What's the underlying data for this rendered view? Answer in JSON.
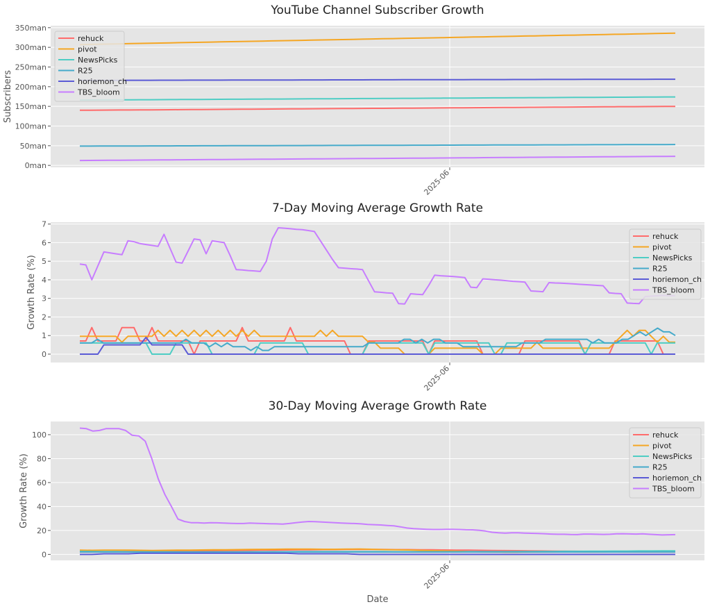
{
  "colors": {
    "rehuck": "#ff6b6b",
    "pivot": "#f5a623",
    "NewsPicks": "#4ecdc4",
    "R25": "#45aaca",
    "horiemon_ch": "#5b5bd6",
    "TBS_bloom": "#c77dff",
    "panel": "#e5e5e5",
    "grid": "#ffffff"
  },
  "chart_data": [
    {
      "type": "line",
      "title": "YouTube Channel Subscriber Growth",
      "xlabel": "",
      "ylabel": "Subscribers",
      "x_tick_labels": [
        "2025-06"
      ],
      "y_ticks": [
        0,
        50,
        100,
        150,
        200,
        250,
        300,
        350
      ],
      "y_tick_labels": [
        "0man",
        "50man",
        "100man",
        "150man",
        "200man",
        "250man",
        "300man",
        "350man"
      ],
      "ylim": [
        -5,
        355
      ],
      "grid": true,
      "legend": "upper left",
      "series": [
        {
          "name": "rehuck",
          "start": 140,
          "end": 150
        },
        {
          "name": "pivot",
          "start": 307,
          "end": 336
        },
        {
          "name": "NewsPicks",
          "start": 166,
          "end": 174
        },
        {
          "name": "R25",
          "start": 49,
          "end": 53
        },
        {
          "name": "horiemon_ch",
          "start": 216,
          "end": 219
        },
        {
          "name": "TBS_bloom",
          "start": 12.5,
          "end": 23
        }
      ]
    },
    {
      "type": "line",
      "title": "7-Day Moving Average Growth Rate",
      "xlabel": "",
      "ylabel": "Growth Rate (%)",
      "x_tick_labels": [
        "2025-06"
      ],
      "y_ticks": [
        0,
        1,
        2,
        3,
        4,
        5,
        6,
        7
      ],
      "ylim": [
        -0.45,
        7.1
      ],
      "grid": true,
      "legend": "upper right",
      "series": [
        {
          "name": "rehuck",
          "values": [
            0.71,
            0.71,
            1.43,
            0.71,
            0.71,
            0.71,
            0.71,
            1.43,
            1.43,
            1.43,
            0.71,
            0.71,
            1.43,
            0.71,
            0.71,
            0.71,
            0.71,
            0.71,
            0.71,
            0.0,
            0.71,
            0.71,
            0.71,
            0.71,
            0.71,
            0.71,
            0.71,
            1.43,
            0.71,
            0.71,
            0.71,
            0.71,
            0.71,
            0.71,
            0.71,
            1.43,
            0.71,
            0.71,
            0.71,
            0.71,
            0.71,
            0.71,
            0.71,
            0.71,
            0.71,
            0.0,
            0.0,
            0.0,
            0.71,
            0.71,
            0.71,
            0.71,
            0.71,
            0.71,
            0.71,
            0.71,
            0.71,
            0.71,
            0.0,
            0.71,
            0.71,
            0.71,
            0.71,
            0.71,
            0.71,
            0.71,
            0.71,
            0.0,
            0.0,
            0.0,
            0.0,
            0.0,
            0.0,
            0.0,
            0.71,
            0.71,
            0.71,
            0.71,
            0.71,
            0.71,
            0.71,
            0.71,
            0.71,
            0.71,
            0.0,
            0.0,
            0.0,
            0.0,
            0.0,
            0.71,
            0.71,
            0.71,
            0.71,
            0.71,
            0.71,
            0.71,
            0.71,
            0.0,
            0.0,
            0.0
          ]
        },
        {
          "name": "pivot",
          "values": [
            0.96,
            0.96,
            0.96,
            0.96,
            0.96,
            0.96,
            0.96,
            0.64,
            0.96,
            0.96,
            0.96,
            0.96,
            0.96,
            1.28,
            0.96,
            1.28,
            0.96,
            1.28,
            0.96,
            1.28,
            0.96,
            1.28,
            0.96,
            1.28,
            0.96,
            1.28,
            0.96,
            1.28,
            0.96,
            1.28,
            0.96,
            0.96,
            0.96,
            0.96,
            0.96,
            0.96,
            0.96,
            0.96,
            0.96,
            0.96,
            1.28,
            0.96,
            1.28,
            0.96,
            0.96,
            0.96,
            0.96,
            0.96,
            0.64,
            0.64,
            0.32,
            0.32,
            0.32,
            0.32,
            0.0,
            0.0,
            0.0,
            0.0,
            0.0,
            0.32,
            0.32,
            0.32,
            0.32,
            0.32,
            0.32,
            0.32,
            0.32,
            0.0,
            0.0,
            0.0,
            0.32,
            0.32,
            0.32,
            0.32,
            0.32,
            0.32,
            0.64,
            0.32,
            0.32,
            0.32,
            0.32,
            0.32,
            0.32,
            0.32,
            0.32,
            0.32,
            0.32,
            0.32,
            0.32,
            0.64,
            0.96,
            1.28,
            0.96,
            1.28,
            1.28,
            0.96,
            0.64,
            0.96,
            0.64,
            0.64
          ]
        },
        {
          "name": "NewsPicks",
          "values": [
            0.6,
            0.6,
            0.6,
            0.6,
            0.6,
            0.6,
            0.6,
            0.6,
            0.6,
            0.6,
            0.6,
            0.6,
            0.0,
            0.0,
            0.0,
            0.0,
            0.6,
            0.6,
            0.6,
            0.6,
            0.6,
            0.6,
            0.0,
            0.0,
            0.0,
            0.0,
            0.0,
            0.0,
            0.0,
            0.0,
            0.6,
            0.6,
            0.6,
            0.6,
            0.6,
            0.6,
            0.6,
            0.6,
            0.0,
            0.0,
            0.0,
            0.0,
            0.0,
            0.0,
            0.0,
            0.0,
            0.0,
            0.0,
            0.6,
            0.6,
            0.6,
            0.6,
            0.6,
            0.6,
            0.6,
            0.6,
            0.6,
            0.6,
            0.0,
            0.6,
            0.6,
            0.6,
            0.6,
            0.6,
            0.6,
            0.6,
            0.6,
            0.6,
            0.6,
            0.0,
            0.0,
            0.6,
            0.6,
            0.6,
            0.6,
            0.6,
            0.6,
            0.6,
            0.6,
            0.6,
            0.6,
            0.6,
            0.6,
            0.6,
            0.0,
            0.6,
            0.6,
            0.6,
            0.6,
            0.6,
            0.6,
            0.6,
            0.6,
            0.6,
            0.6,
            0.0,
            0.6,
            0.6,
            0.6,
            0.6
          ]
        },
        {
          "name": "R25",
          "values": [
            0.6,
            0.6,
            0.6,
            0.8,
            0.6,
            0.6,
            0.6,
            0.6,
            0.6,
            0.6,
            0.6,
            0.6,
            0.6,
            0.6,
            0.6,
            0.6,
            0.6,
            0.6,
            0.8,
            0.6,
            0.6,
            0.6,
            0.4,
            0.6,
            0.4,
            0.6,
            0.4,
            0.4,
            0.4,
            0.2,
            0.4,
            0.2,
            0.2,
            0.4,
            0.4,
            0.4,
            0.4,
            0.4,
            0.4,
            0.4,
            0.4,
            0.4,
            0.4,
            0.4,
            0.4,
            0.4,
            0.4,
            0.4,
            0.4,
            0.6,
            0.6,
            0.6,
            0.6,
            0.6,
            0.6,
            0.8,
            0.8,
            0.6,
            0.8,
            0.6,
            0.8,
            0.8,
            0.6,
            0.6,
            0.6,
            0.4,
            0.4,
            0.4,
            0.4,
            0.4,
            0.4,
            0.4,
            0.4,
            0.4,
            0.4,
            0.6,
            0.6,
            0.6,
            0.6,
            0.8,
            0.8,
            0.8,
            0.8,
            0.8,
            0.8,
            0.8,
            0.8,
            0.6,
            0.8,
            0.6,
            0.6,
            0.6,
            0.8,
            0.8,
            1.0,
            1.2,
            1.0,
            1.2,
            1.4,
            1.2,
            1.2,
            1.0
          ]
        },
        {
          "name": "horiemon_ch",
          "values": [
            0.0,
            0.0,
            0.0,
            0.0,
            0.5,
            0.5,
            0.5,
            0.5,
            0.5,
            0.5,
            0.5,
            0.9,
            0.5,
            0.5,
            0.5,
            0.5,
            0.5,
            0.5,
            0.0,
            0.0,
            0.0,
            0.0,
            0.0,
            0.0,
            0.0,
            0.0,
            0.0,
            0.0,
            0.0,
            0.0,
            0.0,
            0.0,
            0.0,
            0.0,
            0.0,
            0.0,
            0.0,
            0.0,
            0.0,
            0.0,
            0.0,
            0.0,
            0.0,
            0.0,
            0.0,
            0.0,
            0.0,
            0.0,
            0.0,
            0.0,
            0.0,
            0.0,
            0.0,
            0.0,
            0.0,
            0.0,
            0.0,
            0.0,
            0.0,
            0.0,
            0.0,
            0.0,
            0.0,
            0.0,
            0.0,
            0.0,
            0.0,
            0.0,
            0.0,
            0.0,
            0.0,
            0.0,
            0.0,
            0.0,
            0.0,
            0.0,
            0.0,
            0.0,
            0.0,
            0.0,
            0.0,
            0.0,
            0.0,
            0.0,
            0.0,
            0.0,
            0.0,
            0.0,
            0.0,
            0.0,
            0.0,
            0.0,
            0.0,
            0.0,
            0.0,
            0.0,
            0.0,
            0.0,
            0.0,
            0.0
          ]
        },
        {
          "name": "TBS_bloom",
          "values": [
            4.85,
            4.8,
            4.0,
            4.75,
            5.5,
            5.45,
            5.4,
            5.35,
            6.1,
            6.05,
            5.95,
            5.9,
            5.85,
            5.8,
            6.45,
            5.7,
            4.95,
            4.9,
            5.55,
            6.2,
            6.15,
            5.4,
            6.1,
            6.05,
            6.0,
            5.3,
            4.55,
            4.53,
            4.5,
            4.48,
            4.45,
            5.0,
            6.2,
            6.8,
            6.78,
            6.75,
            6.72,
            6.7,
            6.65,
            6.6,
            6.1,
            5.6,
            5.1,
            4.65,
            4.63,
            4.6,
            4.58,
            4.55,
            3.95,
            3.35,
            3.33,
            3.3,
            3.28,
            2.72,
            2.7,
            3.25,
            3.22,
            3.2,
            3.7,
            4.25,
            4.22,
            4.2,
            4.18,
            4.15,
            4.12,
            3.6,
            3.58,
            4.05,
            4.03,
            4.0,
            3.98,
            3.95,
            3.92,
            3.9,
            3.88,
            3.4,
            3.38,
            3.36,
            3.85,
            3.83,
            3.82,
            3.8,
            3.78,
            3.76,
            3.74,
            3.72,
            3.7,
            3.68,
            3.3,
            3.27,
            3.25,
            2.75,
            2.73,
            2.72,
            3.1,
            3.12,
            3.14,
            3.16,
            3.14,
            3.15
          ]
        }
      ]
    },
    {
      "type": "line",
      "title": "30-Day Moving Average Growth Rate",
      "xlabel": "Date",
      "ylabel": "Growth Rate (%)",
      "x_tick_labels": [
        "2025-06"
      ],
      "y_ticks": [
        0,
        20,
        40,
        60,
        80,
        100
      ],
      "ylim": [
        -5,
        111
      ],
      "grid": true,
      "legend": "upper right",
      "series": [
        {
          "name": "rehuck",
          "values": [
            2.0,
            2.1,
            2.2,
            2.3,
            2.4,
            2.5,
            2.6,
            2.7,
            2.8,
            2.9,
            3.0,
            3.1,
            3.2,
            3.3,
            3.4,
            3.5,
            3.6,
            3.7,
            3.8,
            3.9,
            4.0,
            4.0,
            4.1,
            4.1,
            4.1,
            4.1,
            4.0,
            4.0,
            3.9,
            3.8,
            3.7,
            3.6,
            3.5,
            3.4,
            3.3,
            3.2,
            3.1,
            3.0,
            2.9,
            2.8,
            2.7,
            2.6,
            2.5,
            2.4,
            2.3,
            2.2,
            2.1,
            2.0,
            2.0,
            2.0
          ]
        },
        {
          "name": "pivot",
          "values": [
            3.5,
            3.4,
            3.5,
            3.6,
            3.5,
            3.4,
            3.3,
            3.4,
            3.5,
            3.6,
            3.7,
            3.8,
            3.9,
            4.0,
            4.1,
            4.2,
            4.3,
            4.4,
            4.4,
            4.4,
            4.3,
            4.3,
            4.4,
            4.5,
            4.3,
            4.0,
            3.9,
            3.7,
            3.4,
            3.1,
            2.9,
            2.7,
            2.4,
            2.2,
            2.0,
            1.9,
            1.9,
            2.0,
            2.1,
            2.2,
            2.3,
            2.2,
            2.1,
            2.2,
            2.3,
            2.4,
            2.5,
            2.6,
            2.7,
            2.8
          ]
        },
        {
          "name": "NewsPicks",
          "values": [
            2.5,
            2.4,
            2.3,
            2.3,
            2.2,
            2.2,
            2.1,
            2.1,
            2.0,
            2.0,
            2.0,
            2.0,
            2.0,
            2.0,
            2.1,
            2.1,
            2.2,
            2.2,
            2.3,
            2.3,
            2.3,
            2.3,
            2.3,
            2.3,
            2.3,
            2.3,
            2.2,
            2.2,
            2.2,
            2.2,
            2.2,
            2.2,
            2.3,
            2.3,
            2.3,
            2.3,
            2.4,
            2.4,
            2.5,
            2.5,
            2.6,
            2.6,
            2.7,
            2.7,
            2.8,
            2.8,
            2.9,
            2.9,
            3.0,
            3.0
          ]
        },
        {
          "name": "R25",
          "values": [
            2.0,
            2.0,
            2.0,
            2.0,
            2.0,
            2.0,
            2.0,
            2.0,
            2.0,
            2.0,
            2.0,
            2.0,
            2.0,
            2.0,
            2.0,
            2.0,
            2.0,
            2.0,
            2.0,
            2.0,
            2.0,
            2.0,
            2.0,
            2.0,
            2.0,
            2.0,
            2.0,
            2.0,
            2.0,
            2.0,
            2.0,
            2.0,
            2.0,
            2.0,
            2.0,
            2.0,
            2.0,
            2.0,
            2.0,
            2.0,
            2.0,
            2.0,
            2.0,
            2.0,
            2.0,
            2.0,
            2.0,
            2.0,
            2.0,
            2.0
          ]
        },
        {
          "name": "horiemon_ch",
          "values": [
            0.0,
            0.0,
            0.5,
            0.5,
            0.5,
            1.0,
            1.0,
            1.0,
            1.0,
            1.0,
            1.0,
            1.0,
            1.0,
            1.0,
            1.0,
            1.0,
            1.0,
            1.0,
            0.5,
            0.5,
            0.5,
            0.5,
            0.5,
            0.0,
            0.0,
            0.0,
            0.0,
            0.0,
            0.0,
            0.0,
            0.0,
            0.0,
            0.0,
            0.0,
            0.0,
            0.0,
            0.0,
            0.0,
            0.0,
            0.0,
            0.0,
            0.0,
            0.0,
            0.0,
            0.0,
            0.0,
            0.0,
            0.0,
            0.0,
            0.0
          ]
        },
        {
          "name": "TBS_bloom",
          "values": [
            105.5,
            105,
            103,
            103.5,
            105,
            105,
            105,
            103.5,
            99.5,
            99,
            94.5,
            80,
            63,
            50,
            40,
            29.5,
            27.5,
            26.5,
            26.5,
            26.2,
            26.5,
            26.4,
            26.2,
            26,
            25.8,
            25.8,
            26.2,
            26,
            25.8,
            25.6,
            25.5,
            25.3,
            25.8,
            26.5,
            27,
            27.5,
            27.3,
            27,
            26.8,
            26.5,
            26.2,
            26,
            25.8,
            25.5,
            25,
            24.8,
            24.6,
            24.2,
            23.8,
            23,
            22,
            21.5,
            21.2,
            21,
            20.8,
            20.8,
            21,
            21,
            20.8,
            20.6,
            20.5,
            20.2,
            19.5,
            18.5,
            18,
            17.8,
            18,
            18,
            17.8,
            17.6,
            17.5,
            17.3,
            17,
            16.8,
            16.8,
            16.6,
            16.5,
            17,
            17,
            16.8,
            16.7,
            16.8,
            17.2,
            17.3,
            17.1,
            17,
            17.2,
            16.8,
            16.5,
            16.2,
            16.4,
            16.5
          ]
        }
      ]
    }
  ]
}
